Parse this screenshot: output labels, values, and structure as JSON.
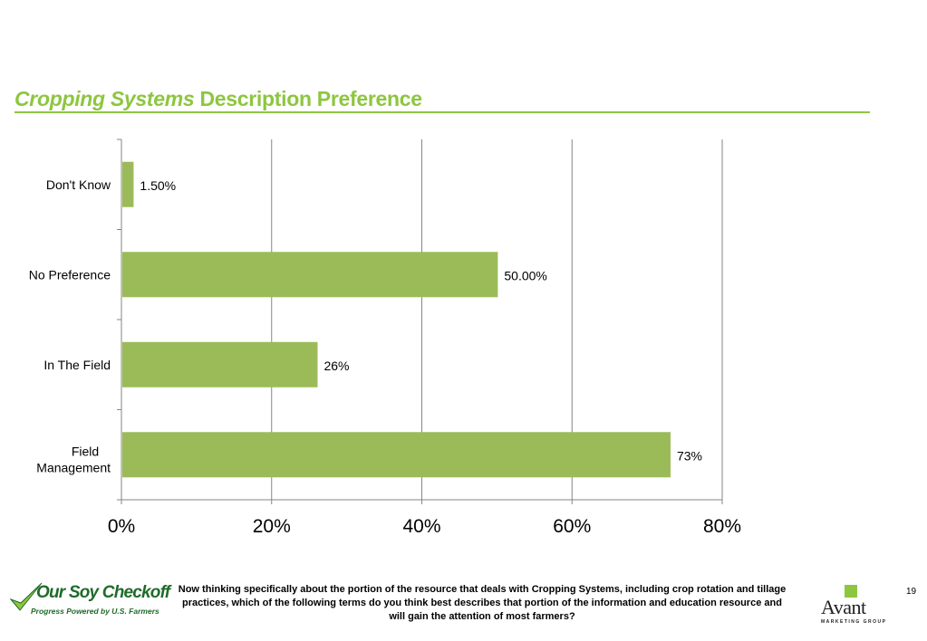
{
  "slide": {
    "title_italic": "Cropping Systems",
    "title_rest": " Description Preference",
    "page_number": "19",
    "question": "Now thinking specifically about the portion of the resource that deals with Cropping Systems, including crop rotation and tillage practices, which of the following terms do you think best describes that portion of the information and education resource and will gain the attention of most farmers?",
    "colors": {
      "accent": "#8DC63F",
      "bar": "#9BBB59",
      "grid": "#868686"
    }
  },
  "logos": {
    "soy_checkoff": {
      "name": "Our Soy Checkoff",
      "tagline": "Progress Powered by U.S. Farmers",
      "icon": "checkmark-icon"
    },
    "avant": {
      "name": "Avant",
      "sub": "MARKETING GROUP"
    }
  },
  "chart_data": {
    "type": "bar",
    "orientation": "horizontal",
    "categories": [
      "Don't Know",
      "No Preference",
      "In The Field",
      "Field Management"
    ],
    "values": [
      1.5,
      50,
      26,
      73
    ],
    "data_labels": [
      "1.50%",
      "50.00%",
      "26%",
      "73%"
    ],
    "xlim": [
      0,
      80
    ],
    "x_ticks": [
      "0%",
      "20%",
      "40%",
      "60%",
      "80%"
    ],
    "grid": true,
    "legend": "none"
  }
}
